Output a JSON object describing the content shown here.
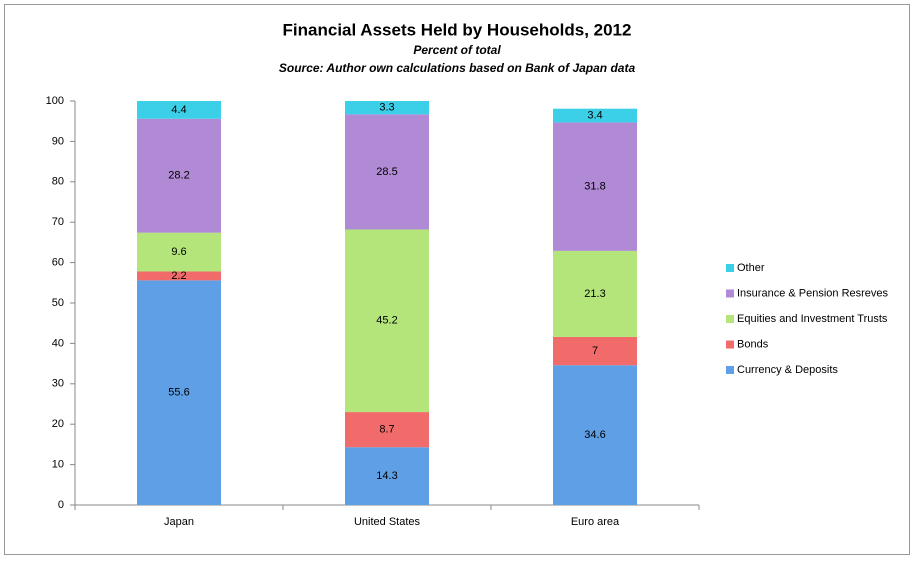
{
  "chart_data": {
    "type": "stacked_bar",
    "title": "Financial Assets Held by Households, 2012",
    "subtitle": "Percent of total",
    "source": "Source: Author own calculations based on Bank of Japan data",
    "categories": [
      "Japan",
      "United States",
      "Euro area"
    ],
    "series": [
      {
        "name": "Currency & Deposits",
        "color": "#5e9fe6",
        "values": [
          55.6,
          14.3,
          34.6
        ]
      },
      {
        "name": "Bonds",
        "color": "#f26b6b",
        "values": [
          2.2,
          8.7,
          7
        ]
      },
      {
        "name": "Equities and Investment Trusts",
        "color": "#b3e57a",
        "values": [
          9.6,
          45.2,
          21.3
        ]
      },
      {
        "name": "Insurance & Pension Resreves",
        "color": "#b08ad4",
        "values": [
          28.2,
          28.5,
          31.8
        ]
      },
      {
        "name": "Other",
        "color": "#3ccfe8",
        "values": [
          4.4,
          3.3,
          3.4
        ]
      }
    ],
    "ylim": [
      0,
      100
    ],
    "yticks": [
      0,
      10,
      20,
      30,
      40,
      50,
      60,
      70,
      80,
      90,
      100
    ],
    "grid": false,
    "legend": "right"
  }
}
